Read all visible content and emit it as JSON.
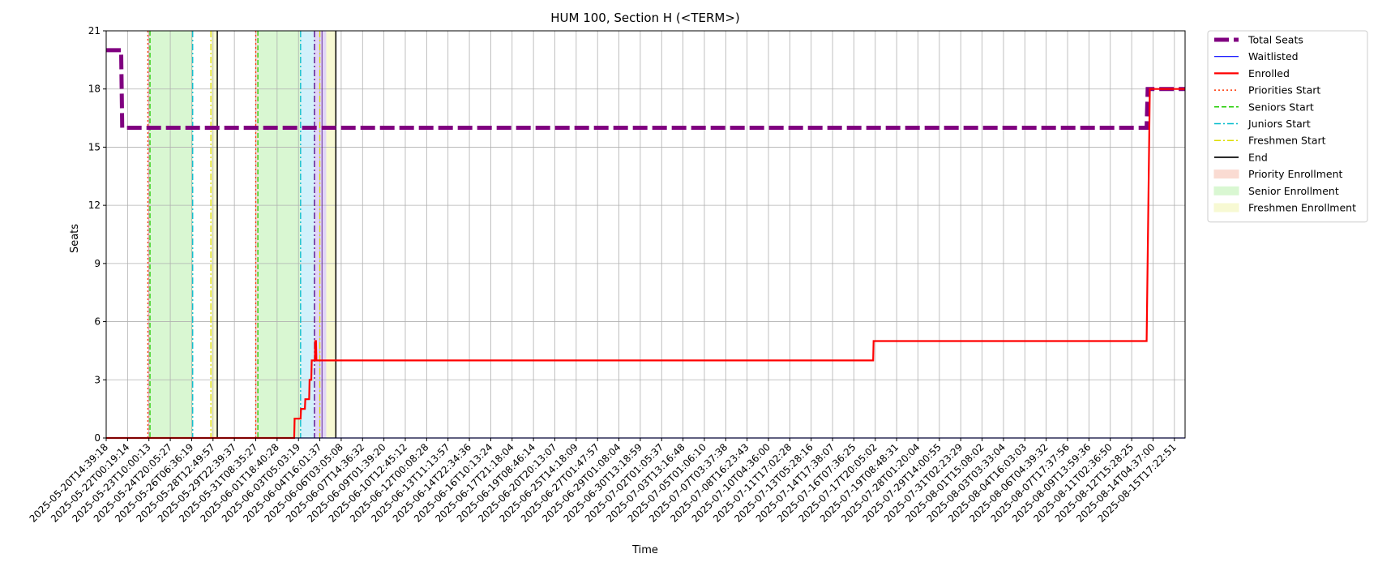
{
  "chart_data": {
    "type": "line",
    "title": "HUM 100, Section H (<TERM>)",
    "xlabel": "Time",
    "ylabel": "Seats",
    "ylim": [
      0,
      21
    ],
    "yticks": [
      "0",
      "3",
      "6",
      "9",
      "12",
      "15",
      "18",
      "21"
    ],
    "grid": true,
    "legend_position": "outside-right",
    "x_tick_labels": [
      "2025-05-20T14:39:18",
      "2025-05-22T00:19:14",
      "2025-05-23T10:00:13",
      "2025-05-24T20:05:27",
      "2025-05-26T06:36:19",
      "2025-05-28T12:49:57",
      "2025-05-29T22:39:37",
      "2025-05-31T08:35:27",
      "2025-06-01T18:40:28",
      "2025-06-03T05:03:19",
      "2025-06-04T16:01:37",
      "2025-06-06T03:05:08",
      "2025-06-07T14:36:32",
      "2025-06-09T01:39:20",
      "2025-06-10T12:45:12",
      "2025-06-12T00:08:28",
      "2025-06-13T11:13:57",
      "2025-06-14T22:34:36",
      "2025-06-16T10:13:24",
      "2025-06-17T21:18:04",
      "2025-06-19T08:46:14",
      "2025-06-20T20:13:07",
      "2025-06-25T14:18:09",
      "2025-06-27T01:47:57",
      "2025-06-29T01:08:04",
      "2025-06-30T13:18:59",
      "2025-07-02T01:05:37",
      "2025-07-03T13:16:48",
      "2025-07-05T01:06:10",
      "2025-07-07T03:37:38",
      "2025-07-08T16:23:43",
      "2025-07-10T04:36:00",
      "2025-07-11T17:02:28",
      "2025-07-13T05:28:16",
      "2025-07-14T17:38:07",
      "2025-07-16T07:36:25",
      "2025-07-17T20:05:02",
      "2025-07-19T08:48:31",
      "2025-07-28T01:20:04",
      "2025-07-29T14:00:55",
      "2025-07-31T02:23:29",
      "2025-08-01T15:08:02",
      "2025-08-03T03:33:04",
      "2025-08-04T16:03:03",
      "2025-08-06T04:39:32",
      "2025-08-07T17:37:56",
      "2025-08-09T13:59:36",
      "2025-08-11T02:36:50",
      "2025-08-12T15:28:25",
      "2025-08-14T04:37:00",
      "2025-08-15T17:22:51"
    ],
    "x_index_range": [
      0,
      50.5
    ],
    "series": [
      {
        "name": "Total Seats",
        "color": "#800080",
        "style": "dashed-thick",
        "x": [
          0,
          0.7,
          0.75,
          48.7,
          48.75,
          50.5
        ],
        "y": [
          20,
          20,
          16,
          16,
          18,
          18
        ]
      },
      {
        "name": "Waitlisted",
        "color": "#0000ff",
        "style": "solid-thin",
        "x": [
          0,
          50.5
        ],
        "y": [
          0,
          0
        ]
      },
      {
        "name": "Enrolled",
        "color": "#ff0000",
        "style": "solid",
        "x": [
          0,
          8.8,
          8.82,
          9.1,
          9.12,
          9.3,
          9.32,
          9.33,
          9.34,
          9.5,
          9.52,
          9.6,
          9.62,
          9.77,
          9.78,
          9.82,
          9.84,
          35.9,
          35.92,
          48.7,
          48.85,
          50.5
        ],
        "y": [
          0,
          0,
          1,
          1,
          1.5,
          1.5,
          2,
          2,
          2,
          2,
          3,
          3,
          4,
          4,
          5,
          5,
          4,
          4,
          5,
          5,
          18,
          18
        ]
      }
    ],
    "vertical_lines": [
      {
        "series": "Priorities Start",
        "x": 1.95
      },
      {
        "series": "Seniors Start",
        "x": 2.05
      },
      {
        "series": "Juniors Start",
        "x": 4.05
      },
      {
        "series": "Freshmen Start",
        "x": 4.9
      },
      {
        "series": "End",
        "x": 5.2
      },
      {
        "series": "Priorities Start",
        "x": 7.0
      },
      {
        "series": "Seniors Start",
        "x": 7.1
      },
      {
        "series": "Juniors Start",
        "x": 9.1
      },
      {
        "series": "Freshmen Start",
        "x": 10.0
      },
      {
        "series": "End",
        "x": 10.75
      }
    ],
    "extra_lines": [
      {
        "color": "#4b0082",
        "style": "dashdot",
        "x": 9.75
      },
      {
        "color": "#4b0082",
        "style": "thin",
        "x": 10.1
      }
    ],
    "shaded_regions": [
      {
        "series": "Priority Enrollment",
        "x0": 1.95,
        "x1": 2.05
      },
      {
        "series": "Senior Enrollment",
        "x0": 2.05,
        "x1": 4.05
      },
      {
        "series": "Freshmen Enrollment",
        "x0": 4.9,
        "x1": 5.2
      },
      {
        "series": "Priority Enrollment",
        "x0": 7.0,
        "x1": 7.1
      },
      {
        "series": "Senior Enrollment",
        "x0": 7.1,
        "x1": 9.1
      },
      {
        "series": "Juniors Enrollment",
        "x0": 9.1,
        "x1": 9.75
      },
      {
        "series": "Sophomore Enrollment",
        "x0": 9.75,
        "x1": 10.3
      },
      {
        "series": "Freshmen Enrollment",
        "x0": 10.3,
        "x1": 10.75
      }
    ],
    "legend": [
      {
        "label": "Total Seats",
        "kind": "line",
        "color": "#800080",
        "style": "dashed-thick"
      },
      {
        "label": "Waitlisted",
        "kind": "line",
        "color": "#0000ff",
        "style": "solid-thin"
      },
      {
        "label": "Enrolled",
        "kind": "line",
        "color": "#ff0000",
        "style": "solid"
      },
      {
        "label": "Priorities Start",
        "kind": "line",
        "color": "#ff3300",
        "style": "dotted"
      },
      {
        "label": "Seniors Start",
        "kind": "line",
        "color": "#22cc00",
        "style": "dashed"
      },
      {
        "label": "Juniors Start",
        "kind": "line",
        "color": "#00bbcc",
        "style": "dashdot"
      },
      {
        "label": "Freshmen Start",
        "kind": "line",
        "color": "#dddd00",
        "style": "dashdot"
      },
      {
        "label": "End",
        "kind": "line",
        "color": "#000000",
        "style": "solid"
      },
      {
        "label": "Priority Enrollment",
        "kind": "patch",
        "color": "#fadbd2"
      },
      {
        "label": "Senior Enrollment",
        "kind": "patch",
        "color": "#d9f7d2"
      },
      {
        "label": "Freshmen Enrollment",
        "kind": "patch",
        "color": "#f7f9d3"
      }
    ],
    "styles": {
      "Priorities Start": {
        "color": "#ff3300",
        "dash": "2,3",
        "width": 1.3
      },
      "Seniors Start": {
        "color": "#22cc00",
        "dash": "6,3",
        "width": 1.3
      },
      "Juniors Start": {
        "color": "#00bbcc",
        "dash": "8,3,2,3",
        "width": 1.3
      },
      "Freshmen Start": {
        "color": "#dddd00",
        "dash": "8,3,2,3",
        "width": 1.3
      },
      "End": {
        "color": "#000000",
        "dash": "",
        "width": 1.5
      },
      "Priority Enrollment": {
        "color": "#fadbd2"
      },
      "Senior Enrollment": {
        "color": "#d9f7d2"
      },
      "Juniors Enrollment": {
        "color": "#d2f1fb"
      },
      "Sophomore Enrollment": {
        "color": "#e2d6f7"
      },
      "Freshmen Enrollment": {
        "color": "#f7f9d3"
      }
    }
  }
}
